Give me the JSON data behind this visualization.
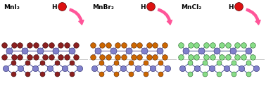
{
  "panels": [
    {
      "label": "MnI₂",
      "hal_color": "#8B2020",
      "hal_edge": "#3A0000",
      "mn_color": "#8080CC",
      "mn_edge": "#2A2A6A",
      "bond_color": "#333388",
      "bg_color": "#E8E8F8"
    },
    {
      "label": "MnBr₂",
      "hal_color": "#CC6600",
      "hal_edge": "#5A2200",
      "mn_color": "#8080CC",
      "mn_edge": "#2A2A6A",
      "bond_color": "#5A4A88",
      "bg_color": "#F0EAE0"
    },
    {
      "label": "MnCl₂",
      "hal_color": "#88DD88",
      "hal_edge": "#226622",
      "mn_color": "#8080CC",
      "mn_edge": "#2A2A6A",
      "bond_color": "#334488",
      "bg_color": "#E8F0E8"
    }
  ],
  "H_color": "#DD1111",
  "H_edge": "#550000",
  "H_label": "H",
  "arrow_color": "#FF5599",
  "bg_color": "#FFFFFF"
}
